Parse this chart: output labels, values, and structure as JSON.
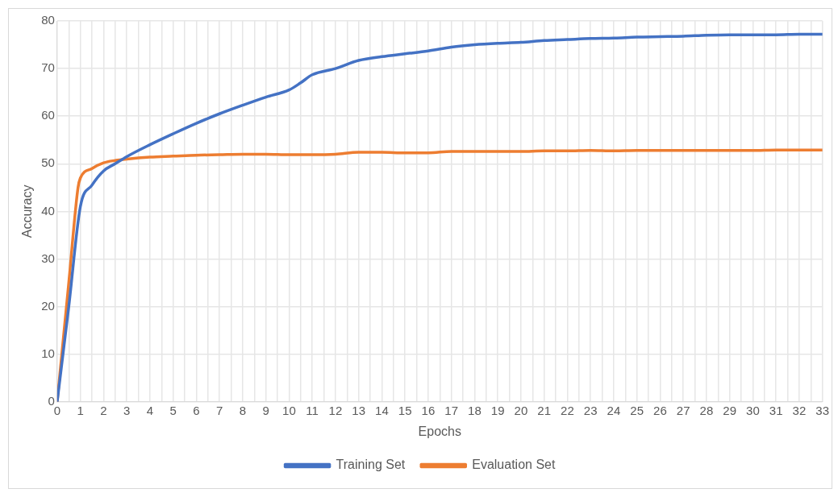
{
  "chart_data": {
    "type": "line",
    "xlabel": "Epochs",
    "ylabel": "Accuracy",
    "xlim": [
      0,
      33
    ],
    "ylim": [
      0,
      80
    ],
    "xticks": [
      0,
      {
        "value": 0.5,
        "label": null
      },
      1,
      {
        "value": 1.5,
        "label": null
      },
      2,
      {
        "value": 2.5,
        "label": null
      },
      3,
      {
        "value": 3.5,
        "label": null
      },
      4,
      {
        "value": 4.5,
        "label": null
      },
      5,
      {
        "value": 5.5,
        "label": null
      },
      6,
      {
        "value": 6.5,
        "label": null
      },
      7,
      {
        "value": 7.5,
        "label": null
      },
      8,
      {
        "value": 8.5,
        "label": null
      },
      9,
      {
        "value": 9.5,
        "label": null
      },
      10,
      {
        "value": 10.5,
        "label": null
      },
      11,
      {
        "value": 11.5,
        "label": null
      },
      12,
      {
        "value": 12.5,
        "label": null
      },
      13,
      {
        "value": 13.5,
        "label": null
      },
      14,
      {
        "value": 14.5,
        "label": null
      },
      15,
      {
        "value": 15.5,
        "label": null
      },
      16,
      {
        "value": 16.5,
        "label": null
      },
      17,
      {
        "value": 17.5,
        "label": null
      },
      18,
      {
        "value": 18.5,
        "label": null
      },
      19,
      {
        "value": 19.5,
        "label": null
      },
      20,
      {
        "value": 20.5,
        "label": null
      },
      21,
      {
        "value": 21.5,
        "label": null
      },
      22,
      {
        "value": 22.5,
        "label": null
      },
      23,
      {
        "value": 23.5,
        "label": null
      },
      24,
      {
        "value": 24.5,
        "label": null
      },
      25,
      {
        "value": 25.5,
        "label": null
      },
      26,
      {
        "value": 26.5,
        "label": null
      },
      27,
      {
        "value": 27.5,
        "label": null
      },
      28,
      {
        "value": 28.5,
        "label": null
      },
      29,
      {
        "value": 29.5,
        "label": null
      },
      30,
      {
        "value": 30.5,
        "label": null
      },
      31,
      {
        "value": 31.5,
        "label": null
      },
      32,
      {
        "value": 32.5,
        "label": null
      },
      33
    ],
    "yticks": [
      0,
      10,
      20,
      30,
      40,
      50,
      60,
      70,
      80
    ],
    "grid": true,
    "legend": "bottom",
    "marker": "none",
    "series": [
      {
        "name": "Training Set",
        "color": "#4472c4",
        "x": [
          0,
          0.5,
          1,
          1.5,
          2,
          2.5,
          3,
          4,
          5,
          6,
          7,
          8,
          9,
          10,
          10.5,
          11,
          12,
          13,
          14,
          15,
          16,
          17,
          18,
          19,
          20,
          21,
          22,
          23,
          24,
          25,
          26,
          27,
          28,
          29,
          30,
          31,
          32,
          33
        ],
        "values": [
          0,
          20,
          41,
          45.5,
          48.5,
          50,
          51.5,
          54,
          56.3,
          58.5,
          60.5,
          62.3,
          64,
          65.5,
          67,
          68.7,
          70,
          71.7,
          72.5,
          73.1,
          73.7,
          74.5,
          75,
          75.3,
          75.5,
          75.9,
          76.1,
          76.3,
          76.4,
          76.6,
          76.7,
          76.8,
          77,
          77.1,
          77.1,
          77.1,
          77.2,
          77.2
        ]
      },
      {
        "name": "Evaluation Set",
        "color": "#ed7d31",
        "x": [
          0,
          0.5,
          0.9,
          1,
          1.5,
          2,
          2.5,
          3,
          4,
          5,
          6,
          7,
          8,
          9,
          10,
          11,
          12,
          13,
          14,
          15,
          16,
          17,
          18,
          19,
          20,
          21,
          22,
          23,
          24,
          25,
          26,
          27,
          28,
          29,
          30,
          31,
          32,
          33
        ],
        "values": [
          0,
          25,
          45,
          47,
          49,
          50.2,
          50.7,
          51,
          51.4,
          51.6,
          51.8,
          51.9,
          52,
          52,
          51.9,
          51.9,
          52,
          52.4,
          52.4,
          52.3,
          52.3,
          52.6,
          52.6,
          52.6,
          52.6,
          52.7,
          52.7,
          52.8,
          52.7,
          52.8,
          52.8,
          52.8,
          52.8,
          52.8,
          52.8,
          52.9,
          52.9,
          52.9
        ]
      }
    ]
  }
}
